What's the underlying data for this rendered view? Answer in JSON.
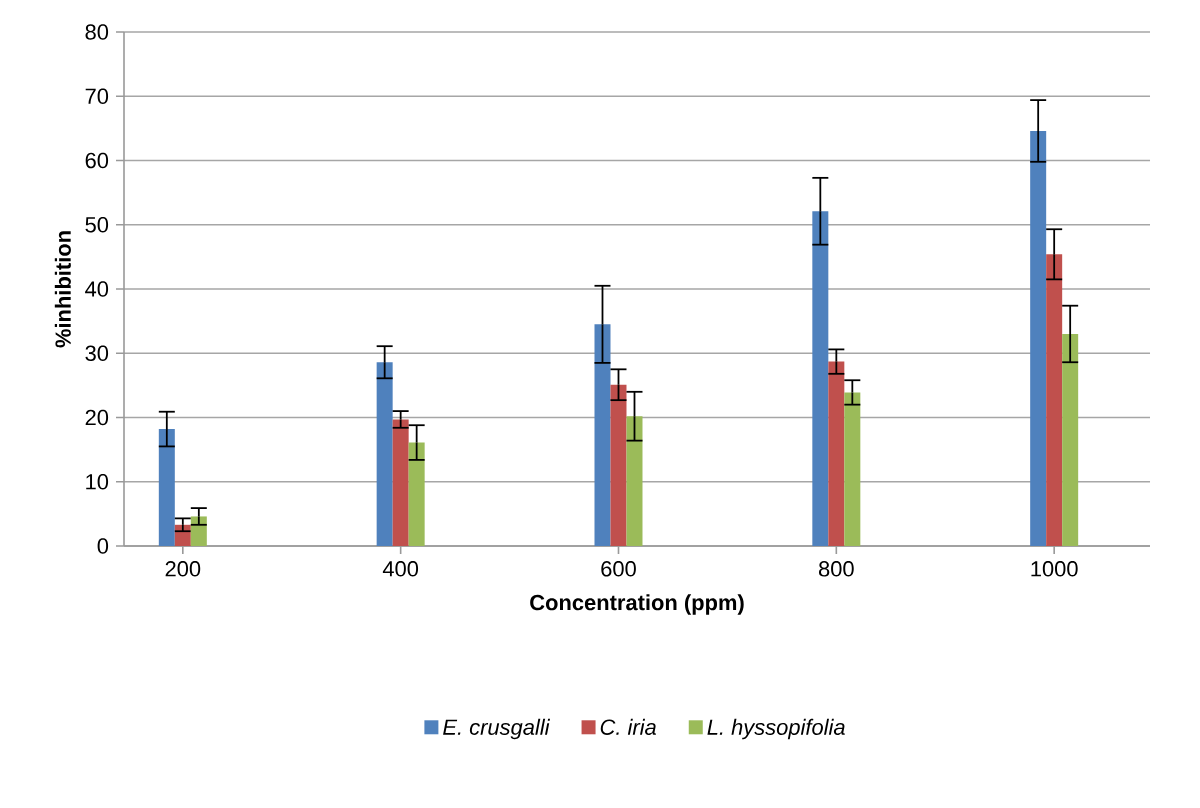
{
  "chart_data": {
    "type": "bar",
    "xlabel": "Concentration (ppm)",
    "ylabel": "%inhibition",
    "categories": [
      "200",
      "400",
      "600",
      "800",
      "1000"
    ],
    "series": [
      {
        "name": "E. crusgalli",
        "color": "#4f81bd",
        "values": [
          18.2,
          28.6,
          34.5,
          52.1,
          64.6
        ],
        "errors": [
          2.7,
          2.5,
          6,
          5.2,
          4.8
        ]
      },
      {
        "name": "C. iria",
        "color": "#c0504d",
        "values": [
          3.3,
          19.7,
          25.1,
          28.7,
          45.4
        ],
        "errors": [
          1,
          1.3,
          2.4,
          1.9,
          3.9
        ]
      },
      {
        "name": "L. hyssopifolia",
        "color": "#9bbb59",
        "values": [
          4.6,
          16.1,
          20.2,
          23.9,
          33.0
        ],
        "errors": [
          1.3,
          2.7,
          3.8,
          1.9,
          4.4
        ]
      }
    ],
    "ylim": [
      0,
      80
    ],
    "yticks": [
      0,
      10,
      20,
      30,
      40,
      50,
      60,
      70,
      80
    ],
    "grid": "y",
    "legend": "bottom"
  }
}
